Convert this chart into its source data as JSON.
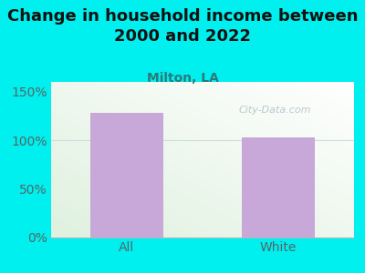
{
  "title": "Change in household income between\n2000 and 2022",
  "subtitle": "Milton, LA",
  "categories": [
    "All",
    "White"
  ],
  "values": [
    128,
    103
  ],
  "bar_color": "#c8a8d8",
  "background_color": "#00efef",
  "title_fontsize": 13,
  "subtitle_fontsize": 10,
  "tick_label_fontsize": 10,
  "axis_label_color": "#556666",
  "title_color": "#111111",
  "subtitle_color": "#2a7a7a",
  "ylim": [
    0,
    160
  ],
  "yticks": [
    0,
    50,
    100,
    150
  ],
  "ytick_labels": [
    "0%",
    "50%",
    "100%",
    "150%"
  ],
  "watermark": "City-Data.com",
  "watermark_color": "#b0bec5",
  "grid_color": "#ddeeee",
  "plot_left_color": "#dff0df",
  "plot_right_color": "#f5faf8"
}
